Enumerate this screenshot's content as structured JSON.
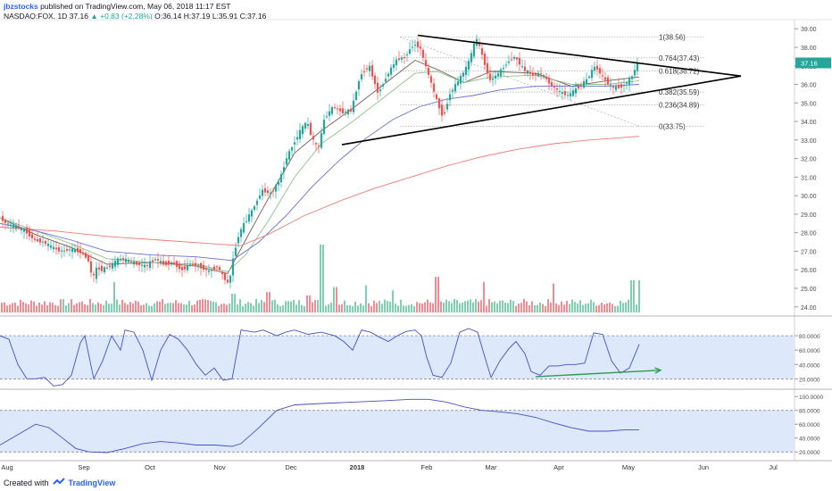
{
  "header": {
    "author": "jbzstocks",
    "published": "published on TradingView.com, May 06, 2018 11:17 EST",
    "symbol": "NASDAQ:FOX, 1D",
    "last": "37.16",
    "change": "▲ +0.83 (+2.28%)",
    "ohlc": "O:36.14 H:37.19 L:35.91 C:37.16"
  },
  "footer": {
    "created_with": "Created with",
    "brand": "TradingView"
  },
  "colors": {
    "up": "#26a69a",
    "down": "#ef5350",
    "up_vol": "#7fcfb1",
    "down_vol": "#f28b94",
    "ma_fast": "#7a5b50",
    "ma_mid": "#8bc48a",
    "ma_slow": "#6670d8",
    "ma_200": "#ef7b72",
    "stoch": "#4450c8",
    "band_fill": "#dde8fb",
    "axis_text": "#4a4a4a",
    "last_badge": "#26a69a"
  },
  "chart_data": {
    "type": "candlestick",
    "price_axis": {
      "min": 23.7,
      "max": 39.3,
      "ticks": [
        "24.00",
        "25.00",
        "26.00",
        "27.00",
        "28.00",
        "29.00",
        "30.00",
        "31.00",
        "32.00",
        "33.00",
        "34.00",
        "35.00",
        "36.00",
        "37.00",
        "38.00",
        "39.00"
      ]
    },
    "last_price_label": "37.16",
    "time_axis": {
      "labels": [
        "Aug",
        "Sep",
        "Oct",
        "Nov",
        "Dec",
        "2018",
        "Feb",
        "Mar",
        "Apr",
        "May",
        "Jun",
        "Jul"
      ],
      "bold_label": "2018"
    },
    "price_path": [
      [
        0,
        28.9
      ],
      [
        8,
        28.5
      ],
      [
        20,
        28.3
      ],
      [
        30,
        28.1
      ],
      [
        40,
        27.6
      ],
      [
        50,
        27.5
      ],
      [
        60,
        27.2
      ],
      [
        70,
        27.0
      ],
      [
        80,
        27.1
      ],
      [
        90,
        27.0
      ],
      [
        100,
        26.6
      ],
      [
        105,
        25.5
      ],
      [
        110,
        26.1
      ],
      [
        115,
        26.0
      ],
      [
        125,
        26.2
      ],
      [
        135,
        26.6
      ],
      [
        145,
        26.5
      ],
      [
        155,
        26.3
      ],
      [
        165,
        26.2
      ],
      [
        175,
        26.6
      ],
      [
        185,
        26.3
      ],
      [
        195,
        26.4
      ],
      [
        205,
        26.0
      ],
      [
        215,
        26.3
      ],
      [
        225,
        26.2
      ],
      [
        235,
        25.9
      ],
      [
        245,
        26.2
      ],
      [
        252,
        25.6
      ],
      [
        258,
        25.2
      ],
      [
        262,
        26.5
      ],
      [
        268,
        27.8
      ],
      [
        275,
        28.5
      ],
      [
        285,
        29.3
      ],
      [
        295,
        30.3
      ],
      [
        305,
        30.1
      ],
      [
        315,
        30.9
      ],
      [
        322,
        32.0
      ],
      [
        330,
        32.8
      ],
      [
        338,
        33.5
      ],
      [
        345,
        34.0
      ],
      [
        352,
        33.0
      ],
      [
        358,
        32.5
      ],
      [
        365,
        34.2
      ],
      [
        375,
        34.8
      ],
      [
        385,
        34.5
      ],
      [
        395,
        34.6
      ],
      [
        405,
        36.5
      ],
      [
        415,
        37.0
      ],
      [
        425,
        35.5
      ],
      [
        435,
        36.5
      ],
      [
        445,
        37.3
      ],
      [
        455,
        37.5
      ],
      [
        465,
        38.2
      ],
      [
        472,
        38.0
      ],
      [
        478,
        37.0
      ],
      [
        485,
        36.0
      ],
      [
        490,
        35.2
      ],
      [
        498,
        34.2
      ],
      [
        505,
        35.5
      ],
      [
        515,
        36.2
      ],
      [
        525,
        37.0
      ],
      [
        535,
        38.5
      ],
      [
        542,
        37.5
      ],
      [
        550,
        36.2
      ],
      [
        560,
        36.6
      ],
      [
        570,
        37.2
      ],
      [
        578,
        37.5
      ],
      [
        588,
        36.8
      ],
      [
        598,
        36.5
      ],
      [
        608,
        36.6
      ],
      [
        618,
        36.0
      ],
      [
        628,
        35.6
      ],
      [
        638,
        35.4
      ],
      [
        648,
        35.8
      ],
      [
        658,
        36.2
      ],
      [
        668,
        37.0
      ],
      [
        678,
        36.3
      ],
      [
        688,
        35.8
      ],
      [
        698,
        35.9
      ],
      [
        708,
        36.3
      ],
      [
        716,
        37.16
      ]
    ],
    "moving_averages": [
      {
        "key": "ma_fast",
        "points": [
          [
            0,
            28.8
          ],
          [
            40,
            27.9
          ],
          [
            80,
            27.2
          ],
          [
            120,
            26.3
          ],
          [
            170,
            26.4
          ],
          [
            220,
            26.2
          ],
          [
            255,
            25.8
          ],
          [
            275,
            27.6
          ],
          [
            300,
            29.8
          ],
          [
            330,
            32.3
          ],
          [
            360,
            33.5
          ],
          [
            395,
            34.7
          ],
          [
            430,
            36.0
          ],
          [
            465,
            37.3
          ],
          [
            490,
            36.8
          ],
          [
            520,
            36.1
          ],
          [
            550,
            36.7
          ],
          [
            600,
            36.6
          ],
          [
            640,
            35.9
          ],
          [
            680,
            36.2
          ],
          [
            716,
            36.4
          ]
        ]
      },
      {
        "key": "ma_mid",
        "points": [
          [
            0,
            28.8
          ],
          [
            40,
            28.1
          ],
          [
            80,
            27.4
          ],
          [
            120,
            26.6
          ],
          [
            170,
            26.4
          ],
          [
            220,
            26.3
          ],
          [
            255,
            25.9
          ],
          [
            275,
            26.8
          ],
          [
            300,
            28.6
          ],
          [
            330,
            31.0
          ],
          [
            360,
            32.8
          ],
          [
            395,
            34.0
          ],
          [
            430,
            35.3
          ],
          [
            465,
            36.6
          ],
          [
            490,
            36.7
          ],
          [
            520,
            36.1
          ],
          [
            550,
            36.4
          ],
          [
            600,
            36.5
          ],
          [
            640,
            36.0
          ],
          [
            680,
            36.0
          ],
          [
            716,
            36.2
          ]
        ]
      },
      {
        "key": "ma_slow",
        "points": [
          [
            0,
            28.5
          ],
          [
            40,
            28.1
          ],
          [
            80,
            27.6
          ],
          [
            120,
            27.0
          ],
          [
            170,
            26.8
          ],
          [
            220,
            26.7
          ],
          [
            260,
            26.5
          ],
          [
            290,
            27.5
          ],
          [
            320,
            28.9
          ],
          [
            350,
            30.5
          ],
          [
            380,
            31.9
          ],
          [
            410,
            33.1
          ],
          [
            440,
            34.1
          ],
          [
            470,
            34.8
          ],
          [
            500,
            35.2
          ],
          [
            530,
            35.4
          ],
          [
            560,
            35.7
          ],
          [
            600,
            35.9
          ],
          [
            640,
            35.9
          ],
          [
            680,
            35.9
          ],
          [
            716,
            36.0
          ]
        ]
      },
      {
        "key": "ma_200",
        "points": [
          [
            0,
            28.3
          ],
          [
            60,
            28.1
          ],
          [
            120,
            27.8
          ],
          [
            180,
            27.6
          ],
          [
            240,
            27.4
          ],
          [
            270,
            27.3
          ],
          [
            300,
            27.9
          ],
          [
            340,
            28.9
          ],
          [
            380,
            29.7
          ],
          [
            420,
            30.4
          ],
          [
            460,
            31.0
          ],
          [
            500,
            31.6
          ],
          [
            540,
            32.1
          ],
          [
            580,
            32.5
          ],
          [
            620,
            32.8
          ],
          [
            660,
            33.0
          ],
          [
            716,
            33.2
          ]
        ]
      }
    ],
    "triangle": {
      "upper": [
        [
          468,
          38.65
        ],
        [
          830,
          36.45
        ]
      ],
      "lower": [
        [
          383,
          32.75
        ],
        [
          830,
          36.45
        ]
      ]
    },
    "fibonacci": [
      {
        "label": "1(38.56)",
        "level": 38.56
      },
      {
        "label": "0.764(37.43)",
        "level": 37.43
      },
      {
        "label": "0.618(36.72)",
        "level": 36.72
      },
      {
        "label": "0.382(35.59)",
        "level": 35.59
      },
      {
        "label": "0.236(34.89)",
        "level": 34.89
      },
      {
        "label": "0(33.75)",
        "level": 33.75
      }
    ],
    "volume_spikes": [
      [
        128,
        0.9
      ],
      [
        262,
        0.55
      ],
      [
        300,
        0.6
      ],
      [
        345,
        0.5
      ],
      [
        360,
        2.0
      ],
      [
        375,
        0.75
      ],
      [
        410,
        0.8
      ],
      [
        440,
        0.65
      ],
      [
        490,
        1.05
      ],
      [
        542,
        0.9
      ],
      [
        620,
        0.85
      ],
      [
        708,
        0.95
      ],
      [
        716,
        0.95
      ]
    ],
    "stochastic_top": {
      "axis": {
        "min": 8,
        "max": 100,
        "ticks": [
          "20.0000",
          "40.0000",
          "60.0000",
          "80.0000"
        ]
      },
      "band": [
        20,
        80
      ],
      "points": [
        [
          0,
          80
        ],
        [
          10,
          75
        ],
        [
          20,
          40
        ],
        [
          30,
          20
        ],
        [
          40,
          20
        ],
        [
          50,
          22
        ],
        [
          60,
          10
        ],
        [
          70,
          12
        ],
        [
          80,
          25
        ],
        [
          90,
          70
        ],
        [
          95,
          80
        ],
        [
          100,
          50
        ],
        [
          105,
          20
        ],
        [
          115,
          45
        ],
        [
          125,
          80
        ],
        [
          135,
          60
        ],
        [
          140,
          88
        ],
        [
          150,
          85
        ],
        [
          160,
          60
        ],
        [
          170,
          18
        ],
        [
          180,
          60
        ],
        [
          190,
          82
        ],
        [
          200,
          75
        ],
        [
          210,
          60
        ],
        [
          220,
          40
        ],
        [
          230,
          25
        ],
        [
          240,
          35
        ],
        [
          250,
          18
        ],
        [
          260,
          20
        ],
        [
          270,
          88
        ],
        [
          285,
          85
        ],
        [
          295,
          88
        ],
        [
          310,
          80
        ],
        [
          320,
          85
        ],
        [
          330,
          88
        ],
        [
          345,
          82
        ],
        [
          360,
          85
        ],
        [
          375,
          80
        ],
        [
          385,
          72
        ],
        [
          395,
          60
        ],
        [
          405,
          88
        ],
        [
          415,
          85
        ],
        [
          425,
          78
        ],
        [
          435,
          72
        ],
        [
          445,
          80
        ],
        [
          455,
          86
        ],
        [
          465,
          88
        ],
        [
          472,
          80
        ],
        [
          478,
          50
        ],
        [
          485,
          25
        ],
        [
          495,
          22
        ],
        [
          505,
          42
        ],
        [
          515,
          85
        ],
        [
          525,
          90
        ],
        [
          535,
          85
        ],
        [
          542,
          55
        ],
        [
          550,
          22
        ],
        [
          560,
          45
        ],
        [
          570,
          62
        ],
        [
          578,
          72
        ],
        [
          588,
          55
        ],
        [
          595,
          30
        ],
        [
          605,
          25
        ],
        [
          615,
          38
        ],
        [
          625,
          38
        ],
        [
          635,
          40
        ],
        [
          645,
          40
        ],
        [
          655,
          42
        ],
        [
          665,
          84
        ],
        [
          675,
          82
        ],
        [
          685,
          45
        ],
        [
          695,
          28
        ],
        [
          705,
          35
        ],
        [
          716,
          68
        ]
      ],
      "trendline": [
        [
          600,
          23
        ],
        [
          740,
          32
        ]
      ]
    },
    "stochastic_bottom": {
      "axis": {
        "min": 10,
        "max": 108,
        "ticks": [
          "20.0000",
          "40.0000",
          "60.0000",
          "80.0000",
          "100.0000"
        ]
      },
      "band": [
        20,
        80
      ],
      "points": [
        [
          0,
          30
        ],
        [
          20,
          45
        ],
        [
          40,
          60
        ],
        [
          55,
          55
        ],
        [
          70,
          40
        ],
        [
          85,
          25
        ],
        [
          100,
          20
        ],
        [
          120,
          19
        ],
        [
          140,
          25
        ],
        [
          160,
          32
        ],
        [
          180,
          35
        ],
        [
          200,
          33
        ],
        [
          220,
          30
        ],
        [
          240,
          30
        ],
        [
          260,
          28
        ],
        [
          270,
          32
        ],
        [
          290,
          55
        ],
        [
          310,
          80
        ],
        [
          330,
          88
        ],
        [
          360,
          90
        ],
        [
          395,
          92
        ],
        [
          430,
          94
        ],
        [
          460,
          96
        ],
        [
          480,
          96
        ],
        [
          500,
          92
        ],
        [
          520,
          85
        ],
        [
          540,
          80
        ],
        [
          560,
          78
        ],
        [
          580,
          75
        ],
        [
          600,
          70
        ],
        [
          620,
          62
        ],
        [
          640,
          55
        ],
        [
          660,
          50
        ],
        [
          680,
          50
        ],
        [
          700,
          52
        ],
        [
          716,
          52
        ]
      ]
    }
  }
}
